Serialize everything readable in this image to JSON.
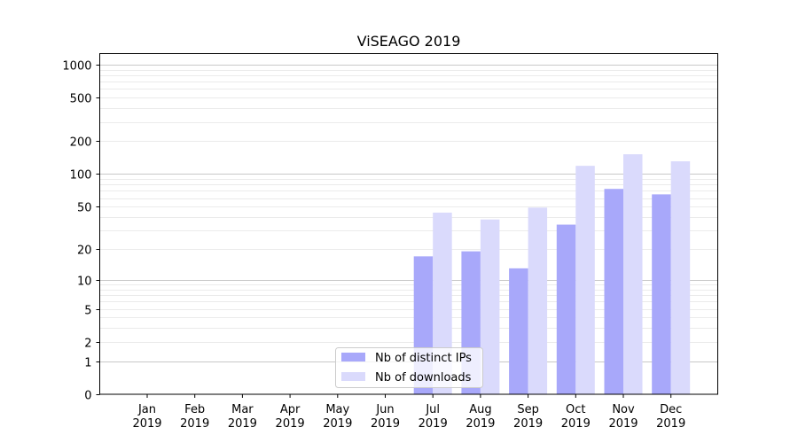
{
  "chart_data": {
    "type": "bar",
    "title": "ViSEAGO 2019",
    "xlabel": "",
    "ylabel": "",
    "yscale": "log10(v+1)",
    "ylim": [
      0,
      1500
    ],
    "yticks": [
      0,
      1,
      2,
      5,
      10,
      20,
      50,
      100,
      200,
      500,
      1000
    ],
    "ytick_labels": [
      "0",
      "1",
      "2",
      "5",
      "10",
      "20",
      "50",
      "100",
      "200",
      "500",
      "1000"
    ],
    "major_grid": [
      1,
      10,
      100,
      1000
    ],
    "minor_grid": [
      2,
      3,
      4,
      5,
      6,
      7,
      8,
      9,
      20,
      30,
      40,
      50,
      60,
      70,
      80,
      90,
      200,
      300,
      400,
      500,
      600,
      700,
      800,
      900
    ],
    "categories": [
      [
        "Jan",
        "2019"
      ],
      [
        "Feb",
        "2019"
      ],
      [
        "Mar",
        "2019"
      ],
      [
        "Apr",
        "2019"
      ],
      [
        "May",
        "2019"
      ],
      [
        "Jun",
        "2019"
      ],
      [
        "Jul",
        "2019"
      ],
      [
        "Aug",
        "2019"
      ],
      [
        "Sep",
        "2019"
      ],
      [
        "Oct",
        "2019"
      ],
      [
        "Nov",
        "2019"
      ],
      [
        "Dec",
        "2019"
      ]
    ],
    "series": [
      {
        "name": "Nb of distinct IPs",
        "color": "#a8a8fa",
        "values": [
          0,
          0,
          0,
          0,
          0,
          0,
          17,
          19,
          13,
          34,
          73,
          65
        ]
      },
      {
        "name": "Nb of downloads",
        "color": "#dadafc",
        "values": [
          0,
          0,
          0,
          0,
          0,
          0,
          44,
          38,
          49,
          119,
          152,
          131
        ]
      }
    ],
    "legend": "bottom-center",
    "grid": true
  }
}
